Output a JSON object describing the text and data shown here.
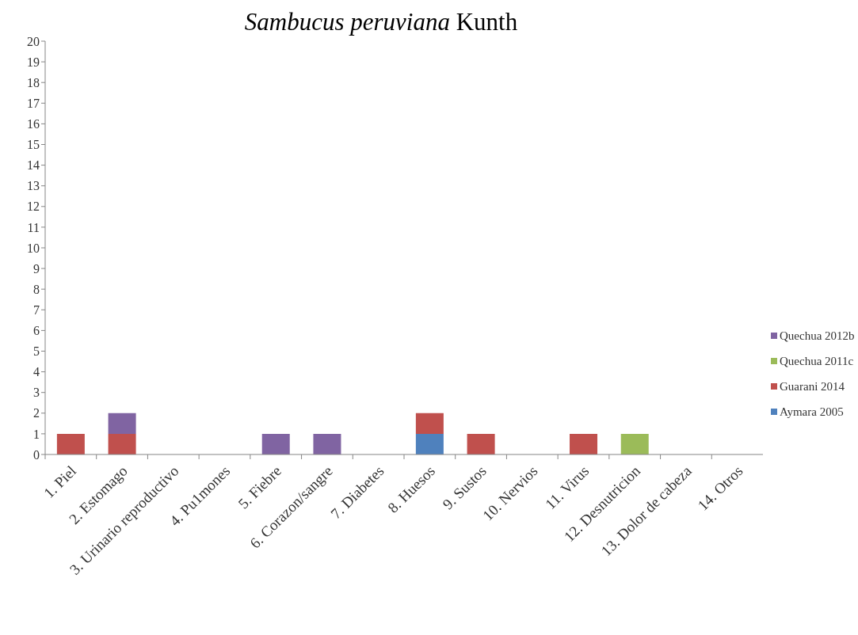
{
  "chart_data": {
    "type": "bar",
    "title": "Sambucus peruviana Kunth",
    "categories": [
      "1. Piel",
      "2. Estomago",
      "3. Urinario reproductivo",
      "4. Pu1mones",
      "5. Fiebre",
      "6. Corazon/sangre",
      "7. Diabetes",
      "8. Huesos",
      "9. Sustos",
      "10. Nervios",
      "11. Virus",
      "12. Desnutricion",
      "13. Dolor de cabeza",
      "14. Otros"
    ],
    "series": [
      {
        "name": "Aymara 2005",
        "color": "#4f81bd",
        "values": [
          0,
          0,
          0,
          0,
          0,
          0,
          0,
          1,
          0,
          0,
          0,
          0,
          0,
          0
        ]
      },
      {
        "name": "Guarani 2014",
        "color": "#c0504d",
        "values": [
          1,
          1,
          0,
          0,
          0,
          0,
          0,
          1,
          1,
          0,
          1,
          0,
          0,
          0
        ]
      },
      {
        "name": "Quechua 2011c",
        "color": "#9bbb59",
        "values": [
          0,
          0,
          0,
          0,
          0,
          0,
          0,
          0,
          0,
          0,
          0,
          1,
          0,
          0
        ]
      },
      {
        "name": "Quechua 2012b",
        "color": "#8064a2",
        "values": [
          0,
          1,
          0,
          0,
          1,
          1,
          0,
          0,
          0,
          0,
          0,
          0,
          0,
          0
        ]
      }
    ],
    "stacked": true,
    "ylim": [
      0,
      20
    ],
    "yticks": [
      0,
      1,
      2,
      3,
      4,
      5,
      6,
      7,
      8,
      9,
      10,
      11,
      12,
      13,
      14,
      15,
      16,
      17,
      18,
      19,
      20
    ],
    "legend": "right"
  }
}
